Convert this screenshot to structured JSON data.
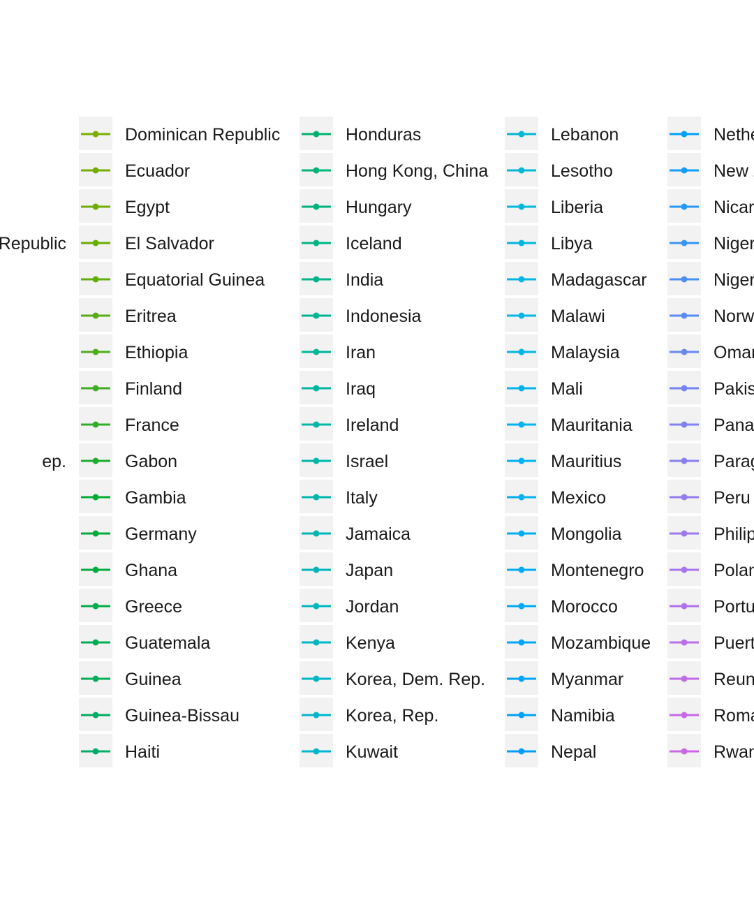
{
  "chart_data": {
    "type": "line",
    "legend": {
      "position": "right",
      "partial_entries": [
        {
          "label": "Republic",
          "row": 3
        },
        {
          "label": "ep.",
          "row": 9
        }
      ],
      "columns": [
        {
          "entries": [
            {
              "label": "Dominican Republic",
              "color": "#7cae00"
            },
            {
              "label": "Ecuador",
              "color": "#76ae00"
            },
            {
              "label": "Egypt",
              "color": "#6fae00"
            },
            {
              "label": "El Salvador",
              "color": "#68ae00"
            },
            {
              "label": "Equatorial Guinea",
              "color": "#60ae0a"
            },
            {
              "label": "Eritrea",
              "color": "#56ae14"
            },
            {
              "label": "Ethiopia",
              "color": "#4cae1c"
            },
            {
              "label": "Finland",
              "color": "#40ae22"
            },
            {
              "label": "France",
              "color": "#31ae28"
            },
            {
              "label": "Gabon",
              "color": "#1cae2e"
            },
            {
              "label": "Gambia",
              "color": "#00ad34"
            },
            {
              "label": "Germany",
              "color": "#00ad3b"
            },
            {
              "label": "Ghana",
              "color": "#00ad42"
            },
            {
              "label": "Greece",
              "color": "#00ad4a"
            },
            {
              "label": "Guatemala",
              "color": "#00ad52"
            },
            {
              "label": "Guinea",
              "color": "#00ad59"
            },
            {
              "label": "Guinea-Bissau",
              "color": "#00ad61"
            },
            {
              "label": "Haiti",
              "color": "#00ad69"
            }
          ]
        },
        {
          "entries": [
            {
              "label": "Honduras",
              "color": "#00b270"
            },
            {
              "label": "Hong Kong, China",
              "color": "#00b277"
            },
            {
              "label": "Hungary",
              "color": "#00b37e"
            },
            {
              "label": "Iceland",
              "color": "#00b485"
            },
            {
              "label": "India",
              "color": "#00b48c"
            },
            {
              "label": "Indonesia",
              "color": "#00b593"
            },
            {
              "label": "Iran",
              "color": "#00b599"
            },
            {
              "label": "Iraq",
              "color": "#00b59f"
            },
            {
              "label": "Ireland",
              "color": "#00b6a5"
            },
            {
              "label": "Israel",
              "color": "#00b6ab"
            },
            {
              "label": "Italy",
              "color": "#00b6b0"
            },
            {
              "label": "Jamaica",
              "color": "#00b6b5"
            },
            {
              "label": "Japan",
              "color": "#00b6ba"
            },
            {
              "label": "Jordan",
              "color": "#00b6bf"
            },
            {
              "label": "Kenya",
              "color": "#00b6c3"
            },
            {
              "label": "Korea, Dem. Rep.",
              "color": "#00b6c8"
            },
            {
              "label": "Korea, Rep.",
              "color": "#00b6cc"
            },
            {
              "label": "Kuwait",
              "color": "#00b6d0"
            }
          ]
        },
        {
          "entries": [
            {
              "label": "Lebanon",
              "color": "#00b8d4"
            },
            {
              "label": "Lesotho",
              "color": "#00b8d8"
            },
            {
              "label": "Liberia",
              "color": "#00b8dc"
            },
            {
              "label": "Libya",
              "color": "#00b8df"
            },
            {
              "label": "Madagascar",
              "color": "#00b8e3"
            },
            {
              "label": "Malawi",
              "color": "#00b7e6"
            },
            {
              "label": "Malaysia",
              "color": "#00b6e9"
            },
            {
              "label": "Mali",
              "color": "#00b5ec"
            },
            {
              "label": "Mauritania",
              "color": "#00b4ee"
            },
            {
              "label": "Mauritius",
              "color": "#00b2f0"
            },
            {
              "label": "Mexico",
              "color": "#00b0f2"
            },
            {
              "label": "Mongolia",
              "color": "#00aef4"
            },
            {
              "label": "Montenegro",
              "color": "#00acf5"
            },
            {
              "label": "Morocco",
              "color": "#00aaf6"
            },
            {
              "label": "Mozambique",
              "color": "#00a7f7"
            },
            {
              "label": "Myanmar",
              "color": "#00a4f8"
            },
            {
              "label": "Namibia",
              "color": "#00a1f8"
            },
            {
              "label": "Nepal",
              "color": "#009ef8"
            }
          ]
        },
        {
          "entries": [
            {
              "label": "Netherlands",
              "color": "#00a0f8"
            },
            {
              "label": "New Zealand",
              "color": "#129cf8"
            },
            {
              "label": "Nicaragua",
              "color": "#2898f7"
            },
            {
              "label": "Niger",
              "color": "#3894f6"
            },
            {
              "label": "Nigeria",
              "color": "#4890f5"
            },
            {
              "label": "Norway",
              "color": "#588cf4"
            },
            {
              "label": "Oman",
              "color": "#6688f3"
            },
            {
              "label": "Pakistan",
              "color": "#7384f2"
            },
            {
              "label": "Panama",
              "color": "#7f81f1"
            },
            {
              "label": "Paraguay",
              "color": "#8a7ef0"
            },
            {
              "label": "Peru",
              "color": "#947bef"
            },
            {
              "label": "Philippines",
              "color": "#9e78ee"
            },
            {
              "label": "Poland",
              "color": "#a775ed"
            },
            {
              "label": "Portugal",
              "color": "#b072ec"
            },
            {
              "label": "Puerto Rico",
              "color": "#b86fea"
            },
            {
              "label": "Reunion",
              "color": "#c06ce8"
            },
            {
              "label": "Romania",
              "color": "#c769e6"
            },
            {
              "label": "Rwanda",
              "color": "#cd66e4"
            }
          ]
        }
      ]
    }
  }
}
